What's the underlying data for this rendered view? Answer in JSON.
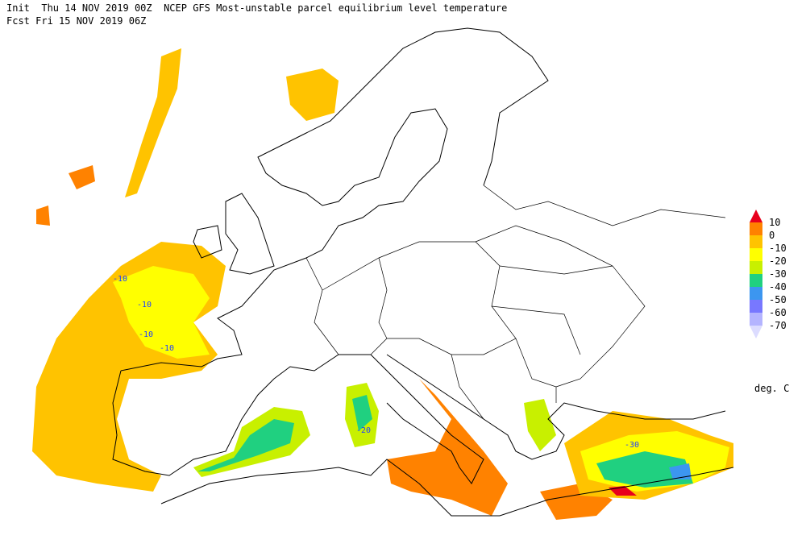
{
  "header": {
    "line1": "Init  Thu 14 NOV 2019 00Z  NCEP GFS Most-unstable parcel equilibrium level temperature",
    "line2": "Fcst Fri 15 NOV 2019 06Z"
  },
  "colorbar": {
    "labels": [
      "10",
      "0",
      "-10",
      "-20",
      "-30",
      "-40",
      "-50",
      "-60",
      "-70"
    ],
    "colors": [
      "#e8001c",
      "#ff8200",
      "#ffc300",
      "#ffff00",
      "#c8f000",
      "#20d080",
      "#3c96f0",
      "#7878ff",
      "#b4b4ff",
      "#dcdcff"
    ],
    "units": "deg. C"
  },
  "contour_labels": [
    "-10",
    "-10",
    "-10",
    "-10",
    "-20",
    "-30"
  ]
}
